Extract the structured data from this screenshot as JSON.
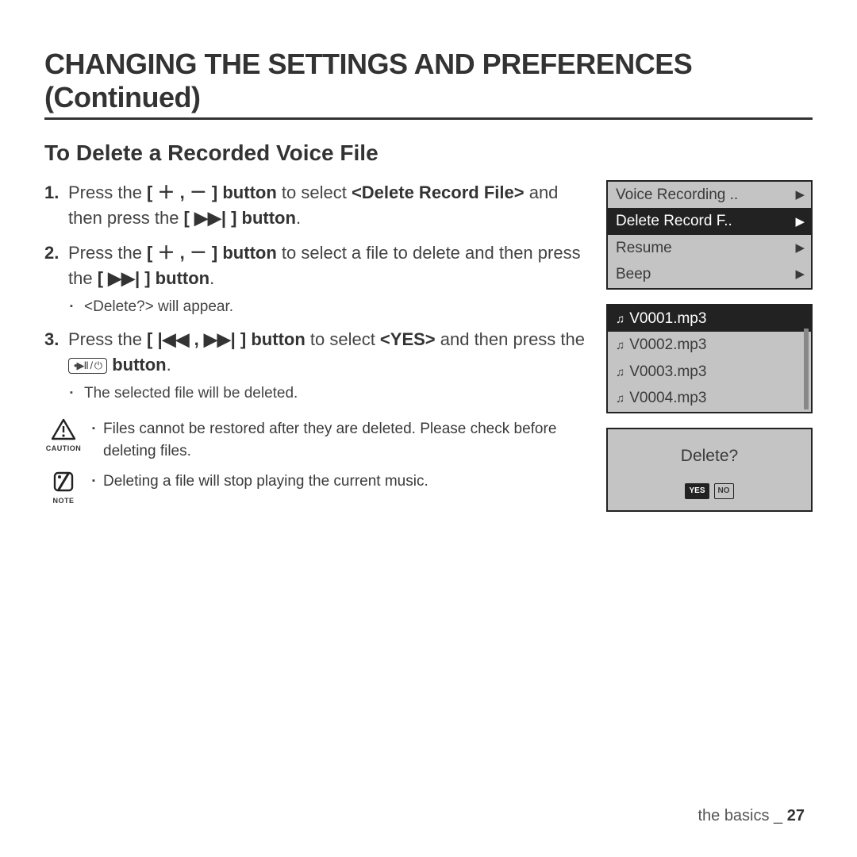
{
  "page_title": "CHANGING THE SETTINGS AND PREFERENCES (Continued)",
  "section_title": "To Delete a Recorded Voice File",
  "steps": {
    "s1": {
      "p1": "Press the ",
      "b1": "[ ＋ , － ] button",
      "p2": " to select ",
      "b2": "<Delete Record File>",
      "p3": " and then press the ",
      "b3": "[ ▶▶| ] button",
      "p4": "."
    },
    "s2": {
      "p1": "Press the ",
      "b1": "[ ＋ , － ] button",
      "p2": " to select a file to delete and then press the ",
      "b2": "[ ▶▶| ] button",
      "p3": ".",
      "sub": "<Delete?> will appear."
    },
    "s3": {
      "p1": "Press the ",
      "b1": "[ |◀◀ , ▶▶| ] button",
      "p2": " to select ",
      "b2": "<YES>",
      "p3": " and then press the ",
      "b3_after": " button",
      "p4": ".",
      "sub": "The selected file will be deleted."
    }
  },
  "caution": {
    "label": "CAUTION",
    "text": "Files cannot be restored after they are deleted. Please check before deleting files."
  },
  "note": {
    "label": "NOTE",
    "text": "Deleting a file will stop playing the current music."
  },
  "menu_screen": {
    "items": [
      {
        "label": "Voice Recording ..",
        "selected": false
      },
      {
        "label": "Delete Record F..",
        "selected": true
      },
      {
        "label": "Resume",
        "selected": false
      },
      {
        "label": "Beep",
        "selected": false
      }
    ]
  },
  "file_screen": {
    "items": [
      {
        "label": "V0001.mp3",
        "selected": true
      },
      {
        "label": "V0002.mp3",
        "selected": false
      },
      {
        "label": "V0003.mp3",
        "selected": false
      },
      {
        "label": "V0004.mp3",
        "selected": false
      }
    ]
  },
  "confirm": {
    "question": "Delete?",
    "yes": "YES",
    "no": "NO"
  },
  "footer": {
    "section": "the basics _ ",
    "page": "27"
  },
  "play_btn_glyph": "•▶Ⅱ / ⏻"
}
